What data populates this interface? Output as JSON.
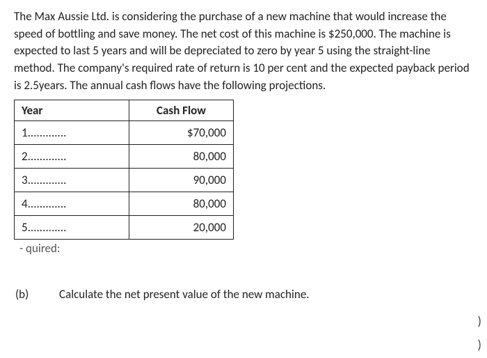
{
  "problem_text": "The Max Aussie Ltd. is considering the purchase of a new machine that would increase the speed of bottling and save money. The net cost of this machine is $250,000. The machine is expected to last 5 years and will be depreciated to zero by year 5 using the straight-line method. The company's required rate of return is 10 per cent and the expected payback period is 2.5years. The annual cash flows have the following projections.",
  "table": {
    "headers": {
      "year": "Year",
      "cash_flow": "Cash Flow"
    },
    "rows": [
      {
        "year": "1.............",
        "value": "$70,000"
      },
      {
        "year": "2.............",
        "value": "80,000"
      },
      {
        "year": "3.............",
        "value": "90,000"
      },
      {
        "year": "4.............",
        "value": "80,000"
      },
      {
        "year": "5.............",
        "value": "20,000"
      }
    ]
  },
  "cutoff_text": "- quired:",
  "question": {
    "label": "(b)",
    "text": "Calculate the net present value of the new machine."
  },
  "paren": ")"
}
